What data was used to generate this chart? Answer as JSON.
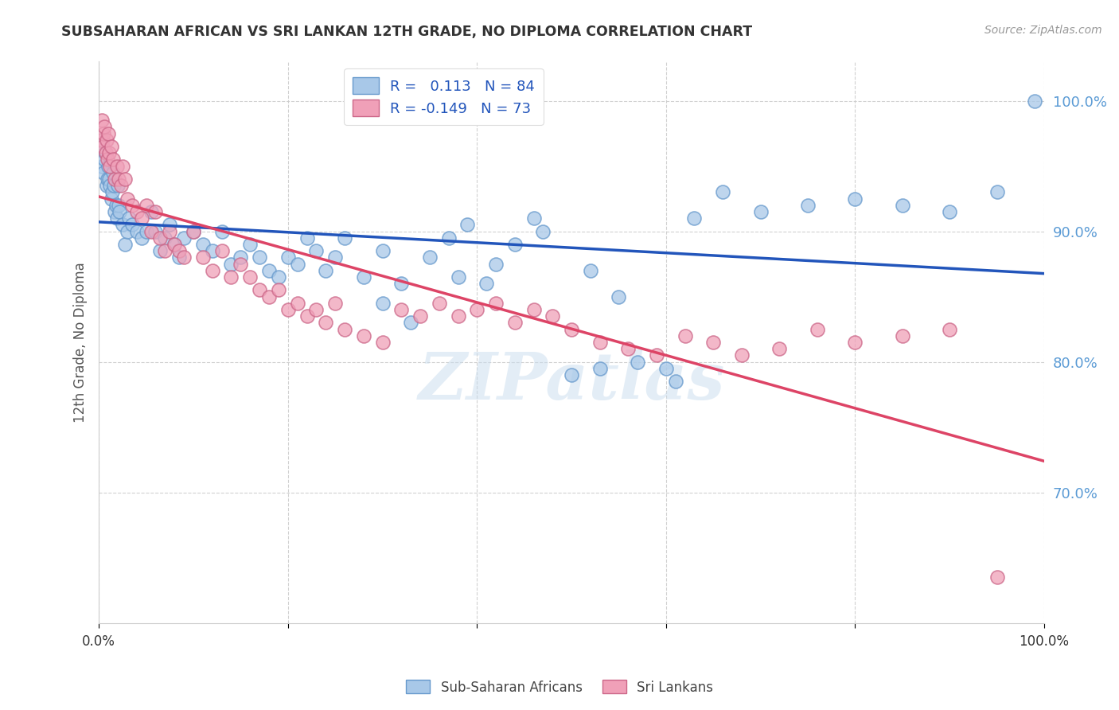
{
  "title": "SUBSAHARAN AFRICAN VS SRI LANKAN 12TH GRADE, NO DIPLOMA CORRELATION CHART",
  "source": "Source: ZipAtlas.com",
  "ylabel": "12th Grade, No Diploma",
  "xlim": [
    0.0,
    100.0
  ],
  "ylim": [
    60.0,
    103.0
  ],
  "yticks": [
    70.0,
    80.0,
    90.0,
    100.0
  ],
  "ytick_labels": [
    "70.0%",
    "80.0%",
    "90.0%",
    "100.0%"
  ],
  "blue_color": "#A8C8E8",
  "pink_color": "#F0A0B8",
  "blue_line_color": "#2255BB",
  "pink_line_color": "#DD4466",
  "background_color": "#FFFFFF",
  "watermark": "ZIPatlas",
  "legend_label_blue": "Sub-Saharan Africans",
  "legend_label_pink": "Sri Lankans",
  "R_blue": 0.113,
  "N_blue": 84,
  "R_pink": -0.149,
  "N_pink": 73,
  "blue_scatter_x": [
    0.2,
    0.3,
    0.4,
    0.5,
    0.6,
    0.7,
    0.8,
    0.9,
    1.0,
    1.1,
    1.2,
    1.3,
    1.4,
    1.5,
    1.6,
    1.7,
    1.8,
    1.9,
    2.0,
    2.1,
    2.2,
    2.5,
    2.8,
    3.0,
    3.2,
    3.5,
    4.0,
    4.5,
    5.0,
    5.5,
    6.0,
    6.5,
    7.0,
    7.5,
    8.0,
    8.5,
    9.0,
    10.0,
    11.0,
    12.0,
    13.0,
    14.0,
    15.0,
    16.0,
    17.0,
    18.0,
    19.0,
    20.0,
    21.0,
    22.0,
    23.0,
    24.0,
    25.0,
    26.0,
    28.0,
    30.0,
    32.0,
    35.0,
    37.0,
    39.0,
    42.0,
    44.0,
    47.0,
    50.0,
    52.0,
    55.0,
    60.0,
    63.0,
    66.0,
    70.0,
    75.0,
    80.0,
    85.0,
    90.0,
    95.0,
    99.0,
    30.0,
    33.0,
    38.0,
    41.0,
    46.0,
    53.0,
    57.0,
    61.0
  ],
  "blue_scatter_y": [
    96.5,
    95.0,
    97.0,
    94.5,
    95.5,
    96.0,
    93.5,
    94.0,
    95.0,
    94.0,
    93.5,
    92.5,
    93.0,
    94.5,
    93.5,
    91.5,
    92.0,
    91.0,
    93.5,
    92.0,
    91.5,
    90.5,
    89.0,
    90.0,
    91.0,
    90.5,
    90.0,
    89.5,
    90.0,
    91.5,
    90.0,
    88.5,
    89.5,
    90.5,
    89.0,
    88.0,
    89.5,
    90.0,
    89.0,
    88.5,
    90.0,
    87.5,
    88.0,
    89.0,
    88.0,
    87.0,
    86.5,
    88.0,
    87.5,
    89.5,
    88.5,
    87.0,
    88.0,
    89.5,
    86.5,
    88.5,
    86.0,
    88.0,
    89.5,
    90.5,
    87.5,
    89.0,
    90.0,
    79.0,
    87.0,
    85.0,
    79.5,
    91.0,
    93.0,
    91.5,
    92.0,
    92.5,
    92.0,
    91.5,
    93.0,
    100.0,
    84.5,
    83.0,
    86.5,
    86.0,
    91.0,
    79.5,
    80.0,
    78.5
  ],
  "pink_scatter_x": [
    0.2,
    0.3,
    0.4,
    0.5,
    0.6,
    0.7,
    0.8,
    0.9,
    1.0,
    1.1,
    1.2,
    1.3,
    1.5,
    1.7,
    1.9,
    2.1,
    2.3,
    2.5,
    2.8,
    3.0,
    3.5,
    4.0,
    4.5,
    5.0,
    5.5,
    6.0,
    6.5,
    7.0,
    7.5,
    8.0,
    8.5,
    9.0,
    10.0,
    11.0,
    12.0,
    13.0,
    14.0,
    15.0,
    16.0,
    17.0,
    18.0,
    19.0,
    20.0,
    21.0,
    22.0,
    23.0,
    24.0,
    25.0,
    26.0,
    28.0,
    30.0,
    32.0,
    34.0,
    36.0,
    38.0,
    40.0,
    42.0,
    44.0,
    46.0,
    48.0,
    50.0,
    53.0,
    56.0,
    59.0,
    62.0,
    65.0,
    68.0,
    72.0,
    76.0,
    80.0,
    85.0,
    90.0,
    95.0
  ],
  "pink_scatter_y": [
    97.0,
    98.5,
    96.5,
    97.5,
    98.0,
    96.0,
    97.0,
    95.5,
    97.5,
    96.0,
    95.0,
    96.5,
    95.5,
    94.0,
    95.0,
    94.0,
    93.5,
    95.0,
    94.0,
    92.5,
    92.0,
    91.5,
    91.0,
    92.0,
    90.0,
    91.5,
    89.5,
    88.5,
    90.0,
    89.0,
    88.5,
    88.0,
    90.0,
    88.0,
    87.0,
    88.5,
    86.5,
    87.5,
    86.5,
    85.5,
    85.0,
    85.5,
    84.0,
    84.5,
    83.5,
    84.0,
    83.0,
    84.5,
    82.5,
    82.0,
    81.5,
    84.0,
    83.5,
    84.5,
    83.5,
    84.0,
    84.5,
    83.0,
    84.0,
    83.5,
    82.5,
    81.5,
    81.0,
    80.5,
    82.0,
    81.5,
    80.5,
    81.0,
    82.5,
    81.5,
    82.0,
    82.5,
    63.5
  ]
}
